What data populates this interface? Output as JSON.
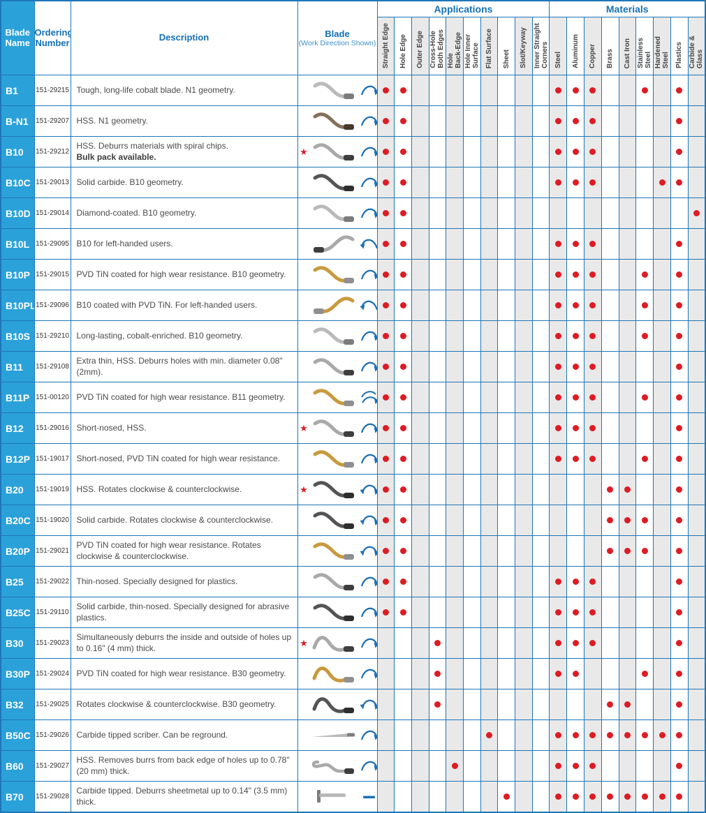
{
  "header": {
    "blade_name": "Blade\nName",
    "ordering_number": "Ordering\nNumber",
    "description": "Description",
    "blade": "Blade",
    "blade_sub": "(Work Direction Shown)"
  },
  "columns": {
    "applications": {
      "label": "Applications",
      "items": [
        "Straight Edge",
        "Hole Edge",
        "Outer Edge",
        "Cross-Hole\nBoth Edges",
        "Hole\nBack-Edge",
        "Hole Inner\nSurface",
        "Flat Surface",
        "Sheet",
        "Slot/Keyway",
        "Inner Straight\nCorners"
      ]
    },
    "materials": {
      "label": "Materials",
      "items": [
        "Steel",
        "Aluminum",
        "Copper",
        "Brass",
        "Cast Iron",
        "Stainless\nSteel",
        "Hardened\nSteel",
        "Plastics",
        "Carbide &\nGlass"
      ]
    }
  },
  "colors": {
    "grid_blue": "#1e76b8",
    "header_blue": "#1470b8",
    "name_cell_blue": "#2ba1d9",
    "dot_red": "#dd1c24",
    "star_red": "#d42027",
    "shade_gray": "#e9e9e9"
  },
  "icons": {
    "star": "featured-star-icon",
    "dot": "selection-dot"
  },
  "rows": [
    {
      "name": "B1",
      "order": "151-29215",
      "desc": "Tough, long-life cobalt blade. N1 geometry.",
      "desc_bold": null,
      "star": false,
      "arrow": "clockwise-arrow",
      "blade": {
        "shape": "s-curve",
        "tint": "silver"
      },
      "apps": [
        0,
        1
      ],
      "mats": [
        0,
        1,
        2,
        5,
        7
      ]
    },
    {
      "name": "B-N1",
      "order": "151-29207",
      "desc": "HSS. N1 geometry.",
      "desc_bold": null,
      "star": false,
      "arrow": "clockwise-arrow",
      "blade": {
        "shape": "s-curve",
        "tint": "bronze"
      },
      "apps": [
        0,
        1
      ],
      "mats": [
        0,
        1,
        2,
        7
      ]
    },
    {
      "name": "B10",
      "order": "151-29212",
      "desc": "HSS. Deburrs materials with spiral chips.",
      "desc_bold": "Bulk pack available.",
      "star": true,
      "arrow": "clockwise-arrow",
      "blade": {
        "shape": "s-curve",
        "tint": "silverdark"
      },
      "apps": [
        0,
        1
      ],
      "mats": [
        0,
        1,
        2,
        7
      ]
    },
    {
      "name": "B10C",
      "order": "151-29013",
      "desc": "Solid carbide. B10 geometry.",
      "desc_bold": null,
      "star": false,
      "arrow": "clockwise-arrow",
      "blade": {
        "shape": "s-curve",
        "tint": "dark"
      },
      "apps": [
        0,
        1
      ],
      "mats": [
        0,
        1,
        2,
        6,
        7
      ]
    },
    {
      "name": "B10D",
      "order": "151-29014",
      "desc": "Diamond-coated. B10 geometry.",
      "desc_bold": null,
      "star": false,
      "arrow": "clockwise-arrow",
      "blade": {
        "shape": "s-curve",
        "tint": "silver"
      },
      "apps": [
        0,
        1
      ],
      "mats": [
        8
      ]
    },
    {
      "name": "B10L",
      "order": "151-29095",
      "desc": "B10 for left-handed users.",
      "desc_bold": null,
      "star": false,
      "arrow": "counterclockwise-arrow",
      "blade": {
        "shape": "s-curve-mirrored",
        "tint": "silverdark"
      },
      "apps": [
        0,
        1
      ],
      "mats": [
        0,
        1,
        2,
        7
      ]
    },
    {
      "name": "B10P",
      "order": "151-29015",
      "desc": "PVD TiN coated for high wear resistance. B10 geometry.",
      "desc_bold": null,
      "star": false,
      "arrow": "clockwise-arrow",
      "blade": {
        "shape": "s-curve",
        "tint": "gold"
      },
      "apps": [
        0,
        1
      ],
      "mats": [
        0,
        1,
        2,
        5,
        7
      ]
    },
    {
      "name": "B10PL",
      "order": "151-29096",
      "desc": "B10 coated with PVD TiN. For left-handed users.",
      "desc_bold": null,
      "star": false,
      "arrow": "counterclockwise-arrow",
      "blade": {
        "shape": "s-curve-mirrored",
        "tint": "gold"
      },
      "apps": [
        0,
        1
      ],
      "mats": [
        0,
        1,
        2,
        5,
        7
      ]
    },
    {
      "name": "B10S",
      "order": "151-29210",
      "desc": "Long-lasting, cobalt-enriched. B10 geometry.",
      "desc_bold": null,
      "star": false,
      "arrow": "clockwise-arrow",
      "blade": {
        "shape": "s-curve",
        "tint": "silver"
      },
      "apps": [
        0,
        1
      ],
      "mats": [
        0,
        1,
        2,
        5,
        7
      ]
    },
    {
      "name": "B11",
      "order": "151-29108",
      "desc": "Extra thin, HSS. Deburrs holes with min. diameter 0.08\" (2mm).",
      "desc_bold": null,
      "star": false,
      "arrow": "clockwise-arrow",
      "blade": {
        "shape": "s-curve",
        "tint": "silverdark"
      },
      "apps": [
        0,
        1
      ],
      "mats": [
        0,
        1,
        2,
        7
      ]
    },
    {
      "name": "B11P",
      "order": "151-00120",
      "desc": "PVD TiN coated for high wear resistance. B11 geometry.",
      "desc_bold": null,
      "star": false,
      "arrow": "double-clockwise-arrow",
      "blade": {
        "shape": "s-curve",
        "tint": "gold"
      },
      "apps": [
        0,
        1
      ],
      "mats": [
        0,
        1,
        2,
        5,
        7
      ]
    },
    {
      "name": "B12",
      "order": "151-29016",
      "desc": "Short-nosed, HSS.",
      "desc_bold": null,
      "star": true,
      "arrow": "clockwise-arrow",
      "blade": {
        "shape": "s-curve",
        "tint": "silverdark"
      },
      "apps": [
        0,
        1
      ],
      "mats": [
        0,
        1,
        2,
        7
      ]
    },
    {
      "name": "B12P",
      "order": "151-19017",
      "desc": "Short-nosed, PVD TiN coated for high wear resistance.",
      "desc_bold": null,
      "star": false,
      "arrow": "clockwise-arrow",
      "blade": {
        "shape": "s-curve",
        "tint": "gold"
      },
      "apps": [
        0,
        1
      ],
      "mats": [
        0,
        1,
        2,
        5,
        7
      ]
    },
    {
      "name": "B20",
      "order": "151-19019",
      "desc": "HSS. Rotates clockwise & counterclockwise.",
      "desc_bold": null,
      "star": true,
      "arrow": "both-directions-arrow",
      "blade": {
        "shape": "s-curve",
        "tint": "dark"
      },
      "apps": [
        0,
        1
      ],
      "mats": [
        3,
        4,
        7
      ]
    },
    {
      "name": "B20C",
      "order": "151-19020",
      "desc": "Solid carbide. Rotates clockwise & counterclockwise.",
      "desc_bold": null,
      "star": false,
      "arrow": "both-directions-arrow",
      "blade": {
        "shape": "s-curve",
        "tint": "dark"
      },
      "apps": [
        0,
        1
      ],
      "mats": [
        3,
        4,
        5,
        7
      ]
    },
    {
      "name": "B20P",
      "order": "151-29021",
      "desc": "PVD TiN coated for high wear resistance. Rotates clockwise & counterclockwise.",
      "desc_bold": null,
      "star": false,
      "arrow": "both-directions-arrow",
      "blade": {
        "shape": "s-curve",
        "tint": "gold"
      },
      "apps": [
        0,
        1
      ],
      "mats": [
        3,
        4,
        5,
        7
      ]
    },
    {
      "name": "B25",
      "order": "151-29022",
      "desc": "Thin-nosed. Specially designed for plastics.",
      "desc_bold": null,
      "star": false,
      "arrow": "clockwise-arrow",
      "blade": {
        "shape": "s-curve",
        "tint": "silverdark"
      },
      "apps": [
        0,
        1
      ],
      "mats": [
        0,
        1,
        2,
        7
      ]
    },
    {
      "name": "B25C",
      "order": "151-29110",
      "desc": "Solid carbide, thin-nosed. Specially designed for abrasive plastics.",
      "desc_bold": null,
      "star": false,
      "arrow": "clockwise-arrow",
      "blade": {
        "shape": "s-curve",
        "tint": "dark"
      },
      "apps": [
        0,
        1
      ],
      "mats": [
        0,
        1,
        2,
        7
      ]
    },
    {
      "name": "B30",
      "order": "151-29023",
      "desc": "Simultaneously deburrs the inside and outside of holes up to 0.16\" (4 mm) thick.",
      "desc_bold": null,
      "star": true,
      "arrow": "clockwise-arrow",
      "blade": {
        "shape": "wave",
        "tint": "silverdark"
      },
      "apps": [
        3
      ],
      "mats": [
        0,
        1,
        2,
        7
      ]
    },
    {
      "name": "B30P",
      "order": "151-29024",
      "desc": "PVD TiN coated for high wear resistance. B30 geometry.",
      "desc_bold": null,
      "star": false,
      "arrow": "clockwise-arrow",
      "blade": {
        "shape": "wave",
        "tint": "gold"
      },
      "apps": [
        3
      ],
      "mats": [
        0,
        1,
        5,
        7
      ]
    },
    {
      "name": "B32",
      "order": "151-29025",
      "desc": "Rotates clockwise & counterclockwise. B30 geometry.",
      "desc_bold": null,
      "star": false,
      "arrow": "both-directions-arrow",
      "blade": {
        "shape": "wave",
        "tint": "dark"
      },
      "apps": [
        3
      ],
      "mats": [
        3,
        4,
        7
      ]
    },
    {
      "name": "B50C",
      "order": "151-29026",
      "desc": "Carbide tipped scriber. Can be reground.",
      "desc_bold": null,
      "star": false,
      "arrow": "clockwise-arrow",
      "blade": {
        "shape": "straight",
        "tint": "silver"
      },
      "apps": [
        6
      ],
      "mats": [
        0,
        1,
        2,
        3,
        4,
        5,
        6,
        7
      ]
    },
    {
      "name": "B60",
      "order": "151-29027",
      "desc": "HSS. Removes burrs from back edge of holes up to 0.78\" (20 mm) thick.",
      "desc_bold": null,
      "star": false,
      "arrow": "clockwise-arrow",
      "blade": {
        "shape": "hook",
        "tint": "silverdark"
      },
      "apps": [
        4
      ],
      "mats": [
        0,
        1,
        2,
        7
      ]
    },
    {
      "name": "B70",
      "order": "151-29028",
      "desc": "Carbide tipped. Deburrs sheetmetal up to 0.14\" (3.5 mm) thick.",
      "desc_bold": null,
      "star": false,
      "arrow": "linear-dash",
      "blade": {
        "shape": "tee",
        "tint": "silver"
      },
      "apps": [
        7
      ],
      "mats": [
        0,
        1,
        2,
        3,
        4,
        5,
        6,
        7
      ]
    }
  ]
}
